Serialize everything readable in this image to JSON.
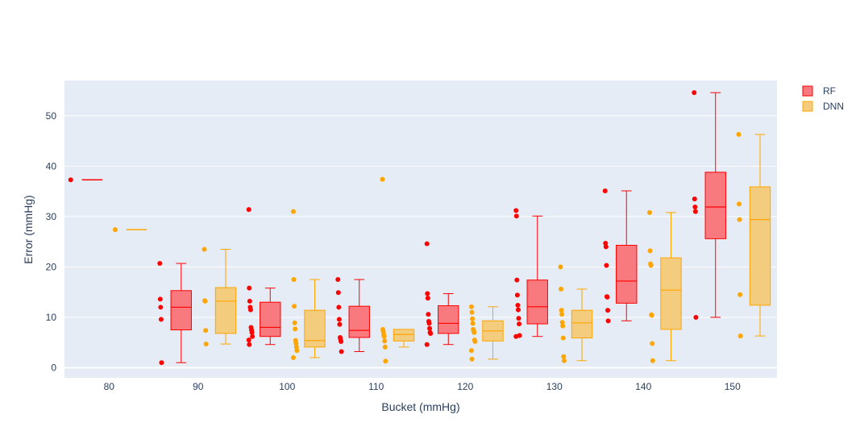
{
  "chart_data": {
    "type": "box",
    "title": "",
    "xlabel": "Bucket (mmHg)",
    "ylabel": "Error (mmHg)",
    "categories": [
      "80",
      "90",
      "100",
      "110",
      "120",
      "130",
      "140",
      "150"
    ],
    "ylim": [
      -2,
      57
    ],
    "yticks": [
      0,
      10,
      20,
      30,
      40,
      50
    ],
    "grid": true,
    "legend_position": "top-right",
    "background": "#E5ECF6",
    "series": [
      {
        "name": "RF",
        "line_color": "#FF0000",
        "fill_color": "#F87A7E",
        "boxes": [
          {
            "category": "80",
            "min": 37.3,
            "q1": 37.3,
            "median": 37.3,
            "q3": 37.3,
            "max": 37.3,
            "points": [
              37.3
            ]
          },
          {
            "category": "90",
            "min": 1.0,
            "q1": 7.5,
            "median": 12.0,
            "q3": 15.3,
            "max": 20.7,
            "points": [
              20.7,
              13.6,
              12.0,
              9.6,
              1.0
            ]
          },
          {
            "category": "100",
            "min": 4.6,
            "q1": 6.2,
            "median": 8.0,
            "q3": 13.0,
            "max": 15.8,
            "points": [
              31.4,
              15.8,
              13.2,
              12.0,
              11.5,
              8.0,
              7.5,
              7.0,
              6.2,
              5.5,
              4.6
            ]
          },
          {
            "category": "110",
            "min": 3.2,
            "q1": 6.0,
            "median": 7.4,
            "q3": 12.2,
            "max": 17.5,
            "points": [
              17.5,
              14.9,
              12.0,
              9.6,
              8.6,
              6.0,
              5.6,
              5.2,
              3.2
            ]
          },
          {
            "category": "120",
            "min": 4.6,
            "q1": 6.8,
            "median": 8.8,
            "q3": 12.3,
            "max": 14.7,
            "points": [
              24.6,
              14.7,
              13.8,
              10.6,
              9.2,
              8.8,
              7.8,
              7.0,
              6.8,
              4.6
            ]
          },
          {
            "category": "130",
            "min": 6.2,
            "q1": 8.7,
            "median": 12.1,
            "q3": 17.4,
            "max": 30.1,
            "points": [
              31.2,
              30.1,
              17.4,
              14.4,
              12.4,
              11.5,
              9.8,
              8.7,
              6.4,
              6.2
            ]
          },
          {
            "category": "140",
            "min": 9.3,
            "q1": 12.8,
            "median": 17.2,
            "q3": 24.3,
            "max": 35.1,
            "points": [
              35.1,
              24.7,
              24.0,
              20.3,
              14.1,
              14.0,
              11.4,
              9.3
            ]
          },
          {
            "category": "150",
            "min": 10.0,
            "q1": 25.6,
            "median": 31.9,
            "q3": 38.8,
            "max": 54.6,
            "points": [
              54.6,
              33.5,
              31.9,
              31.0,
              10.0
            ]
          }
        ]
      },
      {
        "name": "DNN",
        "line_color": "#FFA500",
        "fill_color": "#F4CC7D",
        "boxes": [
          {
            "category": "80",
            "min": 27.4,
            "q1": 27.4,
            "median": 27.4,
            "q3": 27.4,
            "max": 27.4,
            "points": [
              27.4
            ]
          },
          {
            "category": "90",
            "min": 4.7,
            "q1": 6.8,
            "median": 13.2,
            "q3": 15.9,
            "max": 23.5,
            "points": [
              23.5,
              13.3,
              13.2,
              7.4,
              4.7
            ]
          },
          {
            "category": "100",
            "min": 2.0,
            "q1": 4.1,
            "median": 5.4,
            "q3": 11.4,
            "max": 17.5,
            "points": [
              31.0,
              17.5,
              12.2,
              8.9,
              7.7,
              5.4,
              4.8,
              4.1,
              3.4,
              2.0
            ]
          },
          {
            "category": "110",
            "min": 4.1,
            "q1": 5.3,
            "median": 6.6,
            "q3": 7.6,
            "max": 7.6,
            "points": [
              37.4,
              7.6,
              7.2,
              6.6,
              6.2,
              5.3,
              4.1,
              1.3
            ]
          },
          {
            "category": "120",
            "min": 1.7,
            "q1": 5.3,
            "median": 7.3,
            "q3": 9.3,
            "max": 12.1,
            "points": [
              12.1,
              11.0,
              9.7,
              8.8,
              7.6,
              7.3,
              7.0,
              5.5,
              5.2,
              3.4,
              1.7
            ]
          },
          {
            "category": "130",
            "min": 1.4,
            "q1": 5.9,
            "median": 8.9,
            "q3": 11.4,
            "max": 15.6,
            "points": [
              20.0,
              15.6,
              11.4,
              10.6,
              9.0,
              8.3,
              5.9,
              2.2,
              1.4
            ]
          },
          {
            "category": "140",
            "min": 1.4,
            "q1": 7.6,
            "median": 15.4,
            "q3": 21.8,
            "max": 30.8,
            "points": [
              30.8,
              23.2,
              20.6,
              20.3,
              10.5,
              10.4,
              4.8,
              1.4
            ]
          },
          {
            "category": "150",
            "min": 6.3,
            "q1": 12.4,
            "median": 29.4,
            "q3": 35.9,
            "max": 46.3,
            "points": [
              46.3,
              32.5,
              29.4,
              14.5,
              6.3
            ]
          }
        ]
      }
    ]
  }
}
